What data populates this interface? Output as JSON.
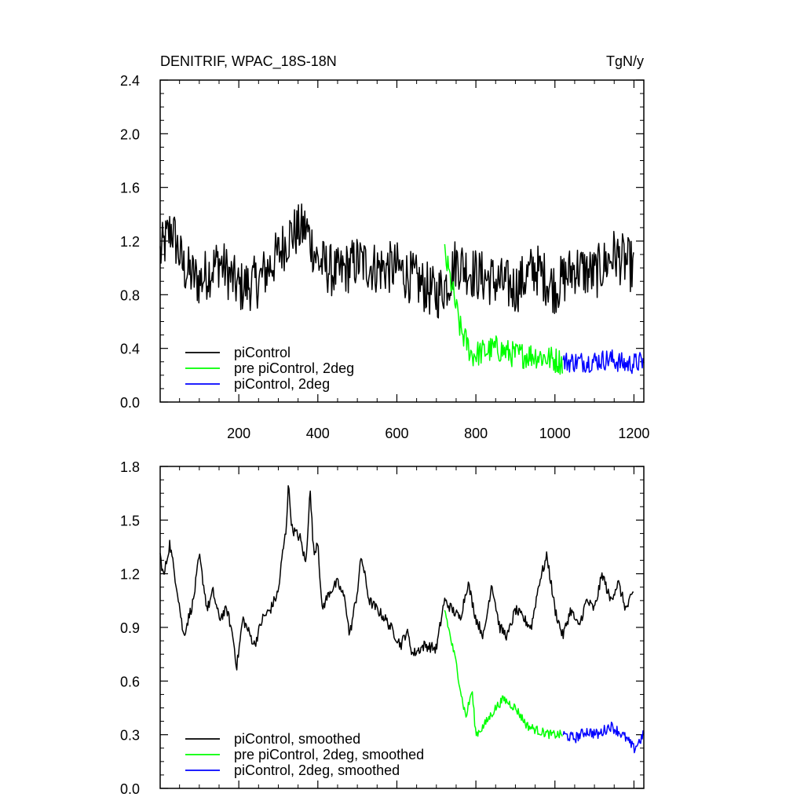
{
  "chart_data": [
    {
      "type": "line",
      "title": "DENITRIF, WPAC_18S-18N",
      "units": "TgN/y",
      "xlim": [
        1,
        1225
      ],
      "ylim": [
        0.0,
        2.4
      ],
      "xticks": [
        200,
        400,
        600,
        800,
        1000,
        1200
      ],
      "xtick_labels": [
        "200",
        "400",
        "600",
        "800",
        "1000",
        "1200"
      ],
      "yticks": [
        0.0,
        0.4,
        0.8,
        1.2,
        1.6,
        2.0,
        2.4
      ],
      "ytick_labels": [
        "0.0",
        "0.4",
        "0.8",
        "1.2",
        "1.6",
        "2.0",
        "2.4"
      ],
      "legend_position": "bottom-left",
      "grid": false,
      "series": [
        {
          "name": "piControl",
          "color": "#000000",
          "x_start": 1,
          "x_end": 1200,
          "anchors": [
            [
              1,
              1.1
            ],
            [
              30,
              1.3
            ],
            [
              60,
              1.0
            ],
            [
              100,
              0.9
            ],
            [
              150,
              1.05
            ],
            [
              200,
              0.85
            ],
            [
              250,
              0.9
            ],
            [
              300,
              1.1
            ],
            [
              330,
              1.25
            ],
            [
              370,
              1.3
            ],
            [
              400,
              1.05
            ],
            [
              450,
              0.95
            ],
            [
              500,
              1.05
            ],
            [
              550,
              1.0
            ],
            [
              600,
              1.0
            ],
            [
              650,
              0.9
            ],
            [
              700,
              0.8
            ],
            [
              730,
              0.9
            ],
            [
              750,
              1.05
            ],
            [
              800,
              0.95
            ],
            [
              850,
              0.9
            ],
            [
              900,
              0.85
            ],
            [
              950,
              1.0
            ],
            [
              1000,
              0.85
            ],
            [
              1050,
              1.0
            ],
            [
              1100,
              0.95
            ],
            [
              1150,
              1.1
            ],
            [
              1200,
              1.0
            ]
          ],
          "noise": 0.2
        },
        {
          "name": "pre piControl, 2deg",
          "color": "#00ff00",
          "x_start": 721,
          "x_end": 1020,
          "anchors": [
            [
              721,
              1.1
            ],
            [
              740,
              0.85
            ],
            [
              760,
              0.55
            ],
            [
              790,
              0.35
            ],
            [
              850,
              0.4
            ],
            [
              900,
              0.35
            ],
            [
              950,
              0.35
            ],
            [
              1020,
              0.3
            ]
          ],
          "noise": 0.1
        },
        {
          "name": "piControl, 2deg",
          "color": "#0000ff",
          "x_start": 1021,
          "x_end": 1225,
          "anchors": [
            [
              1021,
              0.3
            ],
            [
              1080,
              0.3
            ],
            [
              1140,
              0.32
            ],
            [
              1180,
              0.28
            ],
            [
              1225,
              0.3
            ]
          ],
          "noise": 0.08
        }
      ]
    },
    {
      "type": "line",
      "xlim": [
        1,
        1225
      ],
      "ylim": [
        0.0,
        1.8
      ],
      "xticks": [
        200,
        400,
        600,
        800,
        1000,
        1200
      ],
      "yticks": [
        0.0,
        0.3,
        0.6,
        0.9,
        1.2,
        1.5,
        1.8
      ],
      "ytick_labels": [
        "0.0",
        "0.3",
        "0.6",
        "0.9",
        "1.2",
        "1.5",
        "1.8"
      ],
      "legend_position": "bottom-left",
      "grid": false,
      "series": [
        {
          "name": "piControl, smoothed",
          "color": "#000000",
          "x_start": 1,
          "x_end": 1200,
          "anchors": [
            [
              1,
              1.3
            ],
            [
              10,
              1.18
            ],
            [
              25,
              1.37
            ],
            [
              45,
              1.1
            ],
            [
              60,
              0.85
            ],
            [
              85,
              1.05
            ],
            [
              100,
              1.3
            ],
            [
              120,
              1.0
            ],
            [
              135,
              1.1
            ],
            [
              150,
              0.95
            ],
            [
              170,
              1.0
            ],
            [
              185,
              0.85
            ],
            [
              195,
              0.68
            ],
            [
              210,
              0.95
            ],
            [
              240,
              0.8
            ],
            [
              260,
              0.95
            ],
            [
              280,
              1.0
            ],
            [
              300,
              1.1
            ],
            [
              310,
              1.3
            ],
            [
              320,
              1.45
            ],
            [
              325,
              1.7
            ],
            [
              335,
              1.45
            ],
            [
              355,
              1.4
            ],
            [
              370,
              1.25
            ],
            [
              380,
              1.68
            ],
            [
              390,
              1.3
            ],
            [
              400,
              1.4
            ],
            [
              410,
              1.0
            ],
            [
              430,
              1.1
            ],
            [
              450,
              1.15
            ],
            [
              470,
              1.05
            ],
            [
              480,
              0.85
            ],
            [
              500,
              1.1
            ],
            [
              510,
              1.3
            ],
            [
              530,
              1.05
            ],
            [
              550,
              1.0
            ],
            [
              570,
              0.95
            ],
            [
              590,
              0.88
            ],
            [
              610,
              0.8
            ],
            [
              625,
              0.88
            ],
            [
              640,
              0.75
            ],
            [
              670,
              0.8
            ],
            [
              700,
              0.78
            ],
            [
              720,
              1.05
            ],
            [
              740,
              1.0
            ],
            [
              760,
              0.95
            ],
            [
              780,
              1.15
            ],
            [
              800,
              0.95
            ],
            [
              820,
              0.85
            ],
            [
              840,
              1.15
            ],
            [
              860,
              0.9
            ],
            [
              880,
              0.85
            ],
            [
              900,
              1.0
            ],
            [
              920,
              0.95
            ],
            [
              940,
              0.9
            ],
            [
              960,
              1.15
            ],
            [
              980,
              1.3
            ],
            [
              1000,
              1.0
            ],
            [
              1020,
              0.85
            ],
            [
              1040,
              1.0
            ],
            [
              1060,
              0.9
            ],
            [
              1080,
              1.05
            ],
            [
              1100,
              1.0
            ],
            [
              1120,
              1.2
            ],
            [
              1140,
              1.05
            ],
            [
              1160,
              1.15
            ],
            [
              1180,
              1.0
            ],
            [
              1200,
              1.1
            ]
          ],
          "noise": 0.03
        },
        {
          "name": "pre piControl, 2deg, smoothed",
          "color": "#00ff00",
          "x_start": 721,
          "x_end": 1020,
          "anchors": [
            [
              721,
              1.0
            ],
            [
              735,
              0.85
            ],
            [
              750,
              0.7
            ],
            [
              765,
              0.5
            ],
            [
              775,
              0.4
            ],
            [
              790,
              0.55
            ],
            [
              800,
              0.3
            ],
            [
              820,
              0.35
            ],
            [
              850,
              0.45
            ],
            [
              870,
              0.5
            ],
            [
              900,
              0.45
            ],
            [
              930,
              0.35
            ],
            [
              960,
              0.32
            ],
            [
              990,
              0.3
            ],
            [
              1020,
              0.3
            ]
          ],
          "noise": 0.025
        },
        {
          "name": "piControl, 2deg, smoothed",
          "color": "#0000ff",
          "x_start": 1021,
          "x_end": 1225,
          "anchors": [
            [
              1021,
              0.3
            ],
            [
              1050,
              0.28
            ],
            [
              1080,
              0.32
            ],
            [
              1110,
              0.3
            ],
            [
              1140,
              0.35
            ],
            [
              1160,
              0.32
            ],
            [
              1180,
              0.28
            ],
            [
              1200,
              0.22
            ],
            [
              1225,
              0.3
            ]
          ],
          "noise": 0.03
        }
      ]
    }
  ]
}
